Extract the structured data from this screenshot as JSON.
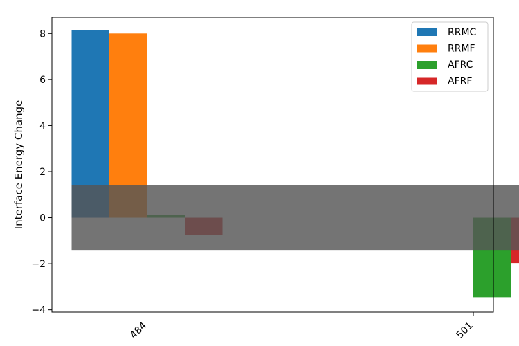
{
  "chart_data": {
    "type": "bar",
    "title": "",
    "xlabel": "",
    "ylabel": "Interface Energy Change",
    "categories": [
      "484",
      "501"
    ],
    "series": [
      {
        "name": "RRMC",
        "values": [
          8.15,
          0
        ],
        "color": "#1f77b4"
      },
      {
        "name": "RRMF",
        "values": [
          8.0,
          0
        ],
        "color": "#ff7f0e"
      },
      {
        "name": "AFRC",
        "values": [
          0.12,
          -3.45
        ],
        "color": "#2ca02c"
      },
      {
        "name": "AFRF",
        "values": [
          -0.75,
          -1.97
        ],
        "color": "#d62728"
      }
    ],
    "ylim": [
      -4.1,
      8.7
    ],
    "yticks": [
      -4,
      -2,
      0,
      2,
      4,
      6,
      8
    ],
    "ytick_labels": [
      "−4",
      "−2",
      "0",
      "2",
      "4",
      "6",
      "8"
    ],
    "xtick_rotation_deg": 45,
    "overlay_band": {
      "y_from": -1.4,
      "y_to": 1.4,
      "color": "#555555",
      "opacity": 0.82
    },
    "legend_position": "top-right",
    "grid": false
  }
}
